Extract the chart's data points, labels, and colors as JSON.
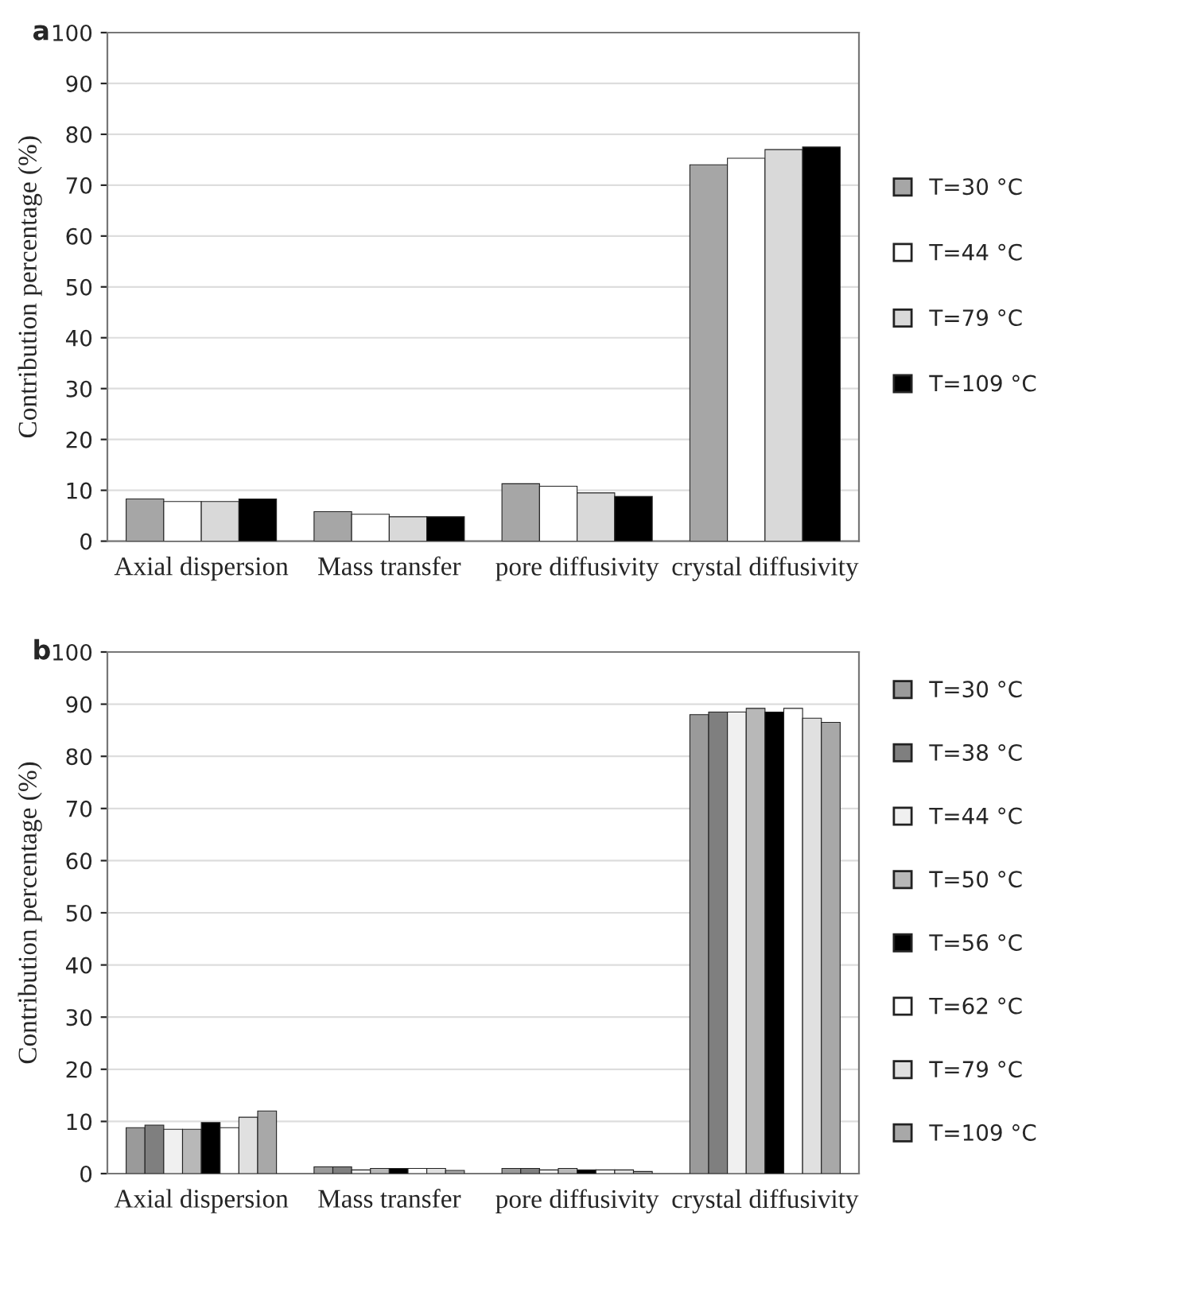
{
  "chart_data": [
    {
      "type": "bar",
      "annotations": [
        "a"
      ],
      "ylabel": "Contribution percentage (%)",
      "categories": [
        "Axial dispersion",
        "Mass transfer",
        "pore diffusivity",
        "crystal diffusivity"
      ],
      "ylim": [
        0,
        100
      ],
      "yticks": [
        0,
        10,
        20,
        30,
        40,
        50,
        60,
        70,
        80,
        90,
        100
      ],
      "grid": "y",
      "legend": "right",
      "series": [
        {
          "name": "T=30 °C",
          "color": "#a6a6a6",
          "values": [
            8.3,
            5.8,
            11.3,
            74
          ]
        },
        {
          "name": "T=44 °C",
          "color": "#ffffff",
          "values": [
            7.8,
            5.3,
            10.8,
            75.3
          ]
        },
        {
          "name": "T=79 °C",
          "color": "#d9d9d9",
          "values": [
            7.8,
            4.8,
            9.5,
            77
          ]
        },
        {
          "name": "T=109 °C",
          "color": "#000000",
          "values": [
            8.3,
            4.8,
            8.8,
            77.5
          ]
        }
      ]
    },
    {
      "type": "bar",
      "annotations": [
        "b"
      ],
      "ylabel": "Contribution percentage (%)",
      "categories": [
        "Axial dispersion",
        "Mass transfer",
        "pore diffusivity",
        "crystal diffusivity"
      ],
      "ylim": [
        0,
        100
      ],
      "yticks": [
        0,
        10,
        20,
        30,
        40,
        50,
        60,
        70,
        80,
        90,
        100
      ],
      "grid": "y",
      "legend": "right",
      "series": [
        {
          "name": "T=30 °C",
          "color": "#9a9a9a",
          "values": [
            8.8,
            1.3,
            1,
            88
          ]
        },
        {
          "name": "T=38 °C",
          "color": "#7f7f7f",
          "values": [
            9.3,
            1.3,
            1,
            88.5
          ]
        },
        {
          "name": "T=44 °C",
          "color": "#f0f0f0",
          "values": [
            8.5,
            0.7,
            0.7,
            88.5
          ]
        },
        {
          "name": "T=50 °C",
          "color": "#b8b8b8",
          "values": [
            8.5,
            1,
            1,
            89.2
          ]
        },
        {
          "name": "T=56 °C",
          "color": "#000000",
          "values": [
            9.8,
            1,
            0.7,
            88.5
          ]
        },
        {
          "name": "T=62 °C",
          "color": "#ffffff",
          "values": [
            8.8,
            1,
            0.7,
            89.2
          ]
        },
        {
          "name": "T=79 °C",
          "color": "#e0e0e0",
          "values": [
            10.8,
            1,
            0.7,
            87.3
          ]
        },
        {
          "name": "T=109 °C",
          "color": "#a8a8a8",
          "values": [
            12,
            0.6,
            0.4,
            86.5
          ]
        }
      ]
    }
  ]
}
